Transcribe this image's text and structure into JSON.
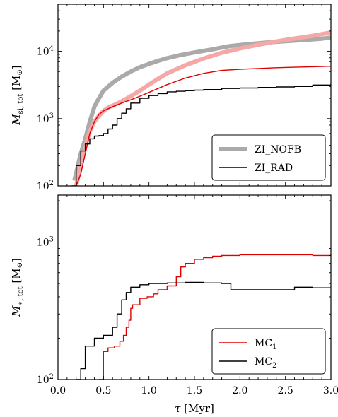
{
  "chart_data": [
    {
      "type": "line",
      "panel": "top",
      "ylabel": "M_si,tot [M☉]",
      "ylabel_parts": {
        "main": "M",
        "sub": "si, tot",
        "unit": " [M",
        "unit_sym": "⊙",
        "unit_close": "]"
      },
      "yscale": "log",
      "ylim": [
        100,
        50000
      ],
      "xlim": [
        0.0,
        3.0
      ],
      "yticks": [
        100,
        1000,
        10000
      ],
      "ytick_labels": [
        {
          "base": "10",
          "exp": "2"
        },
        {
          "base": "10",
          "exp": "3"
        },
        {
          "base": "10",
          "exp": "4"
        }
      ],
      "legend": {
        "position": "lower-right",
        "entries": [
          "ZI_NOFB",
          "ZI_RAD"
        ]
      },
      "series": [
        {
          "name": "ZI_NOFB",
          "color": "#aaaaaa",
          "width": 6,
          "step": false,
          "x": [
            0.18,
            0.25,
            0.3,
            0.35,
            0.4,
            0.45,
            0.5,
            0.6,
            0.7,
            0.8,
            0.9,
            1.0,
            1.1,
            1.2,
            1.35,
            1.5,
            1.7,
            1.85,
            1.9,
            2.1,
            2.3,
            2.5,
            2.7,
            2.9,
            3.0
          ],
          "y": [
            120,
            300,
            500,
            900,
            1500,
            2000,
            2600,
            3400,
            4200,
            5000,
            5800,
            6500,
            7200,
            7900,
            8800,
            9600,
            10700,
            11700,
            12000,
            12800,
            13500,
            14100,
            14700,
            15400,
            16000
          ]
        },
        {
          "name": "ZI_NOFB (red)",
          "color": "#f5a8a8",
          "width": 6,
          "step": false,
          "x": [
            0.2,
            0.25,
            0.3,
            0.35,
            0.4,
            0.45,
            0.5,
            0.55,
            0.6,
            0.7,
            0.8,
            0.9,
            1.0,
            1.1,
            1.2,
            1.4,
            1.6,
            1.8,
            2.0,
            2.2,
            2.4,
            2.6,
            2.8,
            3.0
          ],
          "y": [
            100,
            200,
            380,
            650,
            900,
            1100,
            1300,
            1450,
            1550,
            1800,
            2150,
            2600,
            3200,
            3900,
            4700,
            6200,
            7800,
            9500,
            11000,
            12500,
            14000,
            15500,
            17000,
            19000
          ]
        },
        {
          "name": "ZI_RAD (red)",
          "color": "#e00000",
          "width": 1.4,
          "step": false,
          "x": [
            0.2,
            0.25,
            0.3,
            0.35,
            0.4,
            0.45,
            0.5,
            0.55,
            0.6,
            0.7,
            0.8,
            0.9,
            1.0,
            1.1,
            1.2,
            1.4,
            1.6,
            1.8,
            2.0,
            2.2,
            2.4,
            2.6,
            2.8,
            3.0
          ],
          "y": [
            100,
            150,
            300,
            600,
            900,
            1150,
            1300,
            1400,
            1500,
            1700,
            1900,
            2150,
            2450,
            2800,
            3200,
            4000,
            4700,
            5200,
            5400,
            5550,
            5700,
            5800,
            5900,
            6000
          ]
        },
        {
          "name": "ZI_RAD",
          "color": "#000000",
          "width": 1.4,
          "step": true,
          "x": [
            0.15,
            0.2,
            0.25,
            0.3,
            0.35,
            0.4,
            0.45,
            0.5,
            0.55,
            0.6,
            0.65,
            0.7,
            0.75,
            0.8,
            0.9,
            1.0,
            1.1,
            1.2,
            1.3,
            1.4,
            1.5,
            1.6,
            1.8,
            2.0,
            2.2,
            2.4,
            2.6,
            2.8,
            3.0
          ],
          "y": [
            100,
            200,
            330,
            420,
            500,
            550,
            560,
            600,
            700,
            800,
            1000,
            1200,
            1400,
            1700,
            2000,
            2200,
            2350,
            2500,
            2550,
            2600,
            2650,
            2700,
            2800,
            2850,
            2900,
            2950,
            3000,
            3150,
            3300
          ]
        }
      ]
    },
    {
      "type": "line",
      "panel": "bottom",
      "ylabel": "M_*,tot [M☉]",
      "ylabel_parts": {
        "main": "M",
        "sub": "∗, tot",
        "unit": " [M",
        "unit_sym": "⊙",
        "unit_close": "]"
      },
      "yscale": "log",
      "ylim": [
        100,
        2200
      ],
      "xlim": [
        0.0,
        3.0
      ],
      "xlabel": "τ [Myr]",
      "xlabel_parts": {
        "sym": "τ",
        "rest": " [Myr]"
      },
      "xticks": [
        0.0,
        0.5,
        1.0,
        1.5,
        2.0,
        2.5,
        3.0
      ],
      "xtick_labels": [
        "0.0",
        "0.5",
        "1.0",
        "1.5",
        "2.0",
        "2.5",
        "3.0"
      ],
      "yticks": [
        100,
        1000
      ],
      "ytick_labels": [
        {
          "base": "10",
          "exp": "2"
        },
        {
          "base": "10",
          "exp": "3"
        }
      ],
      "legend": {
        "position": "lower-right",
        "entries": [
          {
            "base": "MC",
            "sub": "1"
          },
          {
            "base": "MC",
            "sub": "2"
          }
        ]
      },
      "series": [
        {
          "name": "MC1",
          "color": "#e00000",
          "width": 1.4,
          "step": true,
          "x": [
            0.45,
            0.5,
            0.55,
            0.62,
            0.68,
            0.72,
            0.75,
            0.78,
            0.8,
            0.82,
            0.9,
            0.98,
            1.05,
            1.1,
            1.2,
            1.3,
            1.35,
            1.4,
            1.5,
            1.6,
            1.7,
            1.8,
            2.0,
            2.2,
            2.5,
            2.8,
            3.0
          ],
          "y": [
            100,
            160,
            170,
            175,
            190,
            210,
            240,
            270,
            330,
            350,
            390,
            400,
            420,
            450,
            480,
            560,
            660,
            700,
            750,
            770,
            790,
            800,
            810,
            810,
            810,
            800,
            810
          ]
        },
        {
          "name": "MC2",
          "color": "#000000",
          "width": 1.4,
          "step": true,
          "x": [
            0.2,
            0.25,
            0.3,
            0.4,
            0.5,
            0.6,
            0.65,
            0.7,
            0.75,
            0.8,
            0.9,
            1.0,
            1.1,
            1.2,
            1.4,
            1.6,
            1.8,
            1.9,
            2.0,
            2.3,
            2.6,
            2.8,
            3.0
          ],
          "y": [
            100,
            120,
            175,
            200,
            210,
            240,
            300,
            380,
            430,
            470,
            490,
            500,
            500,
            505,
            510,
            505,
            500,
            450,
            450,
            450,
            470,
            465,
            460
          ]
        }
      ]
    }
  ]
}
